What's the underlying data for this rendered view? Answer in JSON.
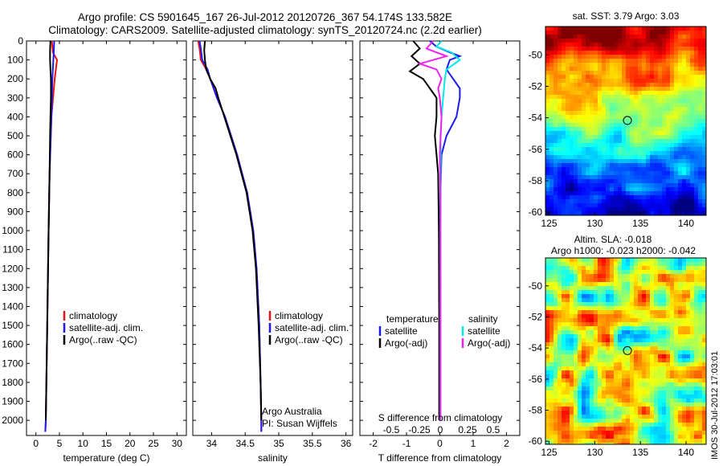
{
  "header": {
    "title_line1": "Argo profile: CS 5901645_167 26-Jul-2012 20120726_367 54.174S 133.582E",
    "title_line2": "Climatology: CARS2009. Satellite-adjusted climatology: synTS_20120724.nc (2.2d earlier)"
  },
  "footer_stamp": "IMOS 30-Jul-2012 17:03:01",
  "colors": {
    "climatology": "#ee1111",
    "satellite": "#1a1aee",
    "argo": "#000000",
    "sal_satellite": "#00e8e8",
    "sal_argo": "#ee22ee"
  },
  "chart_data": [
    {
      "type": "line",
      "id": "temperature",
      "xlabel": "temperature (deg C)",
      "xlim": [
        -2,
        32
      ],
      "ylim": [
        2080,
        0
      ],
      "xticks": [
        0,
        5,
        10,
        15,
        20,
        25,
        30
      ],
      "yticks": [
        0,
        100,
        200,
        300,
        400,
        500,
        600,
        700,
        800,
        900,
        1000,
        1100,
        1200,
        1300,
        1400,
        1500,
        1600,
        1700,
        1800,
        1900,
        2000
      ],
      "legend": [
        "climatology",
        "satellite-adj. clim.",
        "Argo(..raw -QC)"
      ],
      "series": [
        {
          "name": "climatology",
          "color": "#ee1111",
          "depth": [
            0,
            60,
            100,
            200,
            400,
            700,
            1000,
            1500,
            2000,
            2060
          ],
          "x": [
            3.4,
            3.6,
            4.5,
            4.0,
            3.3,
            2.9,
            2.7,
            2.4,
            2.1,
            2.0
          ]
        },
        {
          "name": "satellite-adj. clim.",
          "color": "#1a1aee",
          "depth": [
            0,
            60,
            100,
            200,
            400,
            700,
            1000,
            1500,
            2000,
            2060
          ],
          "x": [
            3.9,
            3.8,
            3.7,
            3.5,
            3.3,
            2.9,
            2.7,
            2.4,
            2.1,
            2.0
          ]
        },
        {
          "name": "Argo(..raw -QC)",
          "color": "#000000",
          "depth": [
            0,
            50,
            100,
            150,
            200,
            250,
            300,
            400,
            500,
            700,
            1000,
            1500,
            2000
          ],
          "x": [
            3.1,
            3.0,
            3.0,
            3.1,
            3.2,
            3.2,
            3.2,
            3.1,
            3.0,
            2.9,
            2.7,
            2.4,
            2.1
          ]
        }
      ]
    },
    {
      "type": "line",
      "id": "salinity",
      "xlabel": "salinity",
      "xlim": [
        33.72,
        36.1
      ],
      "ylim": [
        2080,
        0
      ],
      "xticks": [
        34,
        34.5,
        35,
        35.5,
        36
      ],
      "legend": [
        "climatology",
        "satellite-adj. clim.",
        "Argo(..raw -QC)"
      ],
      "annotation": [
        "Argo Australia",
        "PI: Susan Wijffels"
      ],
      "series": [
        {
          "name": "climatology",
          "color": "#ee1111",
          "depth": [
            0,
            40,
            100,
            150,
            200,
            300,
            400,
            600,
            800,
            1000,
            1200,
            1500,
            1800,
            2000,
            2060
          ],
          "x": [
            33.8,
            33.82,
            33.84,
            33.92,
            33.98,
            34.08,
            34.2,
            34.38,
            34.53,
            34.62,
            34.67,
            34.71,
            34.73,
            34.74,
            34.74
          ]
        },
        {
          "name": "satellite-adj. clim.",
          "color": "#1a1aee",
          "depth": [
            0,
            40,
            100,
            150,
            200,
            300,
            400,
            600,
            800,
            1000,
            1200,
            1500,
            1800,
            2000,
            2060
          ],
          "x": [
            33.82,
            33.84,
            33.86,
            33.94,
            33.98,
            34.08,
            34.2,
            34.38,
            34.53,
            34.62,
            34.67,
            34.71,
            34.73,
            34.74,
            34.74
          ]
        },
        {
          "name": "Argo(..raw -QC)",
          "color": "#000000",
          "depth": [
            0,
            50,
            100,
            150,
            200,
            250,
            300,
            400,
            600,
            800,
            1000,
            1200,
            1500,
            1800,
            2000
          ],
          "x": [
            33.9,
            33.89,
            33.9,
            33.92,
            33.98,
            34.06,
            34.1,
            34.19,
            34.37,
            34.52,
            34.61,
            34.66,
            34.7,
            34.73,
            34.74
          ]
        }
      ]
    },
    {
      "type": "line",
      "id": "differences",
      "xlabel": "T difference from climatology",
      "xlabel2": "S difference from climatology",
      "xlim": [
        -2.4,
        2.4
      ],
      "ylim": [
        2080,
        0
      ],
      "xticks": [
        -2,
        -1,
        0,
        1,
        2
      ],
      "xtick_labels": [
        "-2",
        "-1",
        "0",
        "1",
        "2"
      ],
      "sticks_labels": [
        "-0.5",
        "-0.25",
        "0",
        "0.25",
        "0.5"
      ],
      "legend_left_title": "temperature",
      "legend_right_title": "salinity",
      "legend": [
        "satellite",
        "Argo(-adj)",
        "satellite",
        "Argo(-adj)"
      ],
      "series": [
        {
          "name": "satellite",
          "color": "#1a1aee",
          "depth": [
            0,
            30,
            60,
            80,
            100,
            150,
            200,
            250,
            300,
            400,
            500,
            600,
            800,
            1000,
            1500,
            2000
          ],
          "x": [
            -0.3,
            -0.1,
            0.3,
            0.6,
            0.3,
            0.2,
            0.4,
            0.6,
            0.6,
            0.5,
            0.2,
            0.05,
            0.02,
            0.0,
            0.0,
            0.0
          ]
        },
        {
          "name": "Argo(-adj)",
          "color": "#000000",
          "depth": [
            0,
            40,
            80,
            120,
            160,
            200,
            250,
            300,
            400,
            500,
            600,
            700,
            1000,
            1500,
            2000
          ],
          "x": [
            -0.8,
            -0.6,
            -0.85,
            -0.6,
            -0.9,
            -0.5,
            -0.3,
            -0.1,
            -0.1,
            -0.15,
            -0.1,
            -0.05,
            -0.03,
            -0.02,
            -0.02
          ]
        },
        {
          "name": "satellite (S)",
          "color": "#00e8e8",
          "depth": [
            0,
            30,
            60,
            100,
            150,
            200,
            300,
            400,
            500,
            600,
            800,
            1000,
            1500,
            2000
          ],
          "x": [
            0.05,
            -0.1,
            0.35,
            0.6,
            0.2,
            0.15,
            0.1,
            0.05,
            0.02,
            0.03,
            0.02,
            0.02,
            0.02,
            0.02
          ]
        },
        {
          "name": "Argo(-adj) (S)",
          "color": "#ee22ee",
          "depth": [
            0,
            40,
            80,
            120,
            150,
            200,
            250,
            300,
            400,
            600,
            800,
            1000,
            1500,
            2000
          ],
          "x": [
            -0.2,
            -0.4,
            0.2,
            -0.6,
            -0.1,
            0.05,
            -0.05,
            0.0,
            0.05,
            0.0,
            0.02,
            0.02,
            0.02,
            0.02
          ]
        }
      ]
    },
    {
      "type": "heatmap",
      "id": "sst_map",
      "title": "sat. SST: 3.79 Argo: 3.03",
      "xlim": [
        124.6,
        142.2
      ],
      "ylim": [
        -60.2,
        -48.2
      ],
      "xticks": [
        125,
        130,
        135,
        140
      ],
      "yticks": [
        -50,
        -52,
        -54,
        -56,
        -58,
        -60
      ],
      "marker": {
        "lon": 133.58,
        "lat": -54.17
      }
    },
    {
      "type": "heatmap",
      "id": "sla_map",
      "title": "Altim. SLA: -0.018",
      "subtitle": "Argo h1000: -0.023 h2000: -0.042",
      "xlim": [
        124.6,
        142.2
      ],
      "ylim": [
        -60.2,
        -48.2
      ],
      "xticks": [
        125,
        130,
        135,
        140
      ],
      "yticks": [
        -50,
        -52,
        -54,
        -56,
        -58,
        -60
      ],
      "marker": {
        "lon": 133.58,
        "lat": -54.17
      }
    }
  ]
}
